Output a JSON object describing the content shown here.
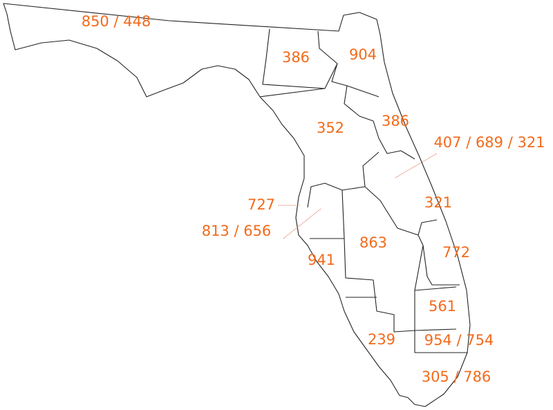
{
  "area_codes": [
    "850 / 448",
    "386",
    "904",
    "352",
    "386",
    "407 / 689 / 321",
    "321",
    "727",
    "813 / 656",
    "863",
    "772",
    "941",
    "561",
    "239",
    "954 / 754",
    "305 / 786"
  ]
}
